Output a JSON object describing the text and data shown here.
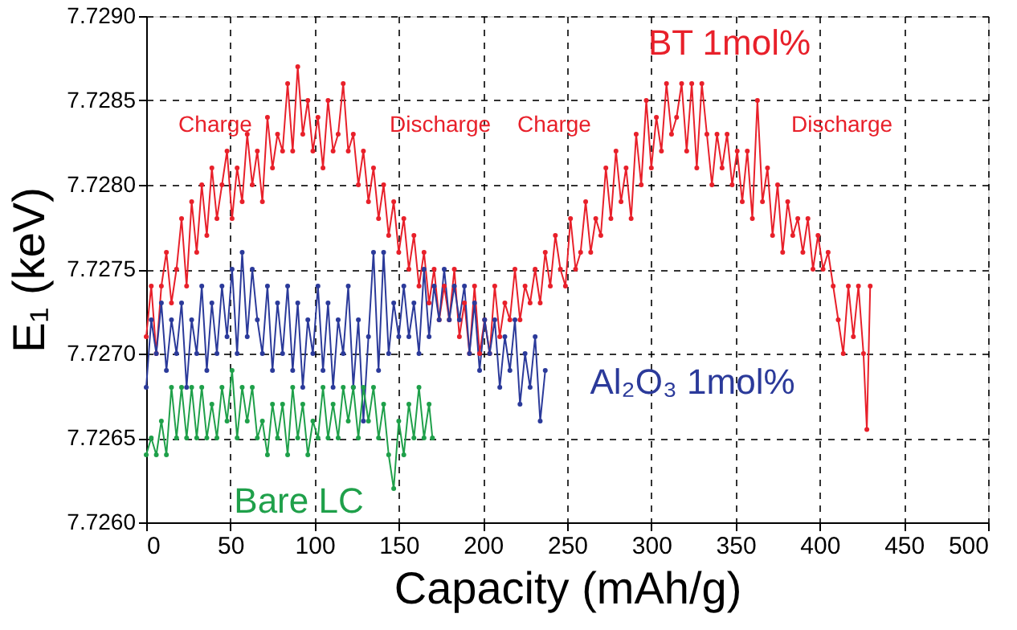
{
  "chart_data": {
    "type": "line",
    "xlabel": "Capacity (mAh/g)",
    "ylabel": "E₁ (keV)",
    "xlim": [
      0,
      500
    ],
    "xticks": [
      0,
      50,
      100,
      150,
      200,
      250,
      300,
      350,
      400,
      450,
      500
    ],
    "ylim": [
      7.726,
      7.729
    ],
    "yticks": [
      {
        "value": 7.726,
        "label": "7.7260"
      },
      {
        "value": 7.7265,
        "label": "7.7265"
      },
      {
        "value": 7.727,
        "label": "7.7270"
      },
      {
        "value": 7.7275,
        "label": "7.7275"
      },
      {
        "value": 7.728,
        "label": "7.7280"
      },
      {
        "value": 7.7285,
        "label": "7.7285"
      },
      {
        "value": 7.729,
        "label": "7.7290"
      }
    ],
    "grid": true,
    "legend": false,
    "marker": "circle",
    "line_style": "solid",
    "annotations": [
      "Charge",
      "Discharge",
      "Charge",
      "Discharge"
    ],
    "series": [
      {
        "name": "BT 1mol%",
        "color": "#e8202a",
        "x": [
          0,
          3,
          6,
          9,
          12,
          15,
          18,
          21,
          24,
          27,
          30,
          33,
          36,
          39,
          42,
          45,
          48,
          51,
          54,
          57,
          60,
          63,
          66,
          69,
          72,
          75,
          78,
          81,
          84,
          87,
          90,
          93,
          96,
          99,
          102,
          105,
          108,
          111,
          114,
          117,
          120,
          123,
          126,
          129,
          132,
          135,
          138,
          141,
          144,
          147,
          150,
          153,
          156,
          159,
          162,
          165,
          168,
          171,
          174,
          177,
          180,
          183,
          186,
          189,
          192,
          195,
          198,
          201,
          204,
          207,
          210,
          213,
          216,
          219,
          222,
          225,
          228,
          231,
          234,
          237,
          240,
          243,
          246,
          249,
          252,
          255,
          258,
          261,
          264,
          267,
          270,
          273,
          276,
          279,
          282,
          285,
          288,
          291,
          294,
          297,
          300,
          303,
          306,
          309,
          312,
          315,
          318,
          321,
          324,
          327,
          330,
          333,
          336,
          339,
          342,
          345,
          348,
          351,
          354,
          357,
          360,
          363,
          366,
          369,
          372,
          375,
          378,
          381,
          384,
          387,
          390,
          393,
          396,
          399,
          402,
          405,
          408,
          411,
          414,
          417,
          420,
          423,
          426,
          428,
          430
        ],
        "values": [
          7.7271,
          7.7274,
          7.727,
          7.7274,
          7.7276,
          7.7273,
          7.7275,
          7.7278,
          7.7274,
          7.7279,
          7.7276,
          7.728,
          7.7277,
          7.7281,
          7.7278,
          7.728,
          7.7282,
          7.7278,
          7.7281,
          7.7279,
          7.7283,
          7.728,
          7.7282,
          7.7279,
          7.7284,
          7.7281,
          7.7283,
          7.7282,
          7.7286,
          7.7282,
          7.7287,
          7.7283,
          7.7285,
          7.7282,
          7.7284,
          7.7281,
          7.7285,
          7.7282,
          7.7283,
          7.7286,
          7.7282,
          7.7283,
          7.728,
          7.7282,
          7.7279,
          7.7281,
          7.7278,
          7.728,
          7.7277,
          7.7279,
          7.7276,
          7.7278,
          7.7275,
          7.7277,
          7.7274,
          7.7276,
          7.7273,
          7.7275,
          7.7272,
          7.7274,
          7.7272,
          7.7275,
          7.7271,
          7.7273,
          7.727,
          7.7274,
          7.727,
          7.7272,
          7.727,
          7.7274,
          7.7271,
          7.7273,
          7.7272,
          7.7275,
          7.7272,
          7.7274,
          7.7273,
          7.7275,
          7.7273,
          7.7276,
          7.7274,
          7.7277,
          7.7275,
          7.7274,
          7.7278,
          7.7275,
          7.7276,
          7.7279,
          7.7276,
          7.7278,
          7.7277,
          7.7281,
          7.7278,
          7.7282,
          7.7279,
          7.7281,
          7.7278,
          7.7283,
          7.728,
          7.7285,
          7.7281,
          7.7284,
          7.7282,
          7.7286,
          7.7283,
          7.7284,
          7.7286,
          7.7282,
          7.7286,
          7.7281,
          7.7286,
          7.7283,
          7.728,
          7.7283,
          7.7281,
          7.7283,
          7.728,
          7.7282,
          7.7279,
          7.7282,
          7.7278,
          7.7285,
          7.7279,
          7.7281,
          7.7277,
          7.728,
          7.7276,
          7.7279,
          7.7277,
          7.7278,
          7.7276,
          7.7278,
          7.7275,
          7.7277,
          7.7275,
          7.7276,
          7.7274,
          7.7272,
          7.727,
          7.7274,
          7.7271,
          7.7274,
          7.727,
          7.72655,
          7.7274
        ]
      },
      {
        "name": "Al₂O₃ 1mol%",
        "color": "#2b3a9a",
        "x": [
          0,
          3,
          6,
          9,
          12,
          15,
          18,
          21,
          24,
          27,
          30,
          33,
          36,
          39,
          42,
          45,
          48,
          51,
          54,
          57,
          60,
          63,
          66,
          69,
          72,
          75,
          78,
          81,
          84,
          87,
          90,
          93,
          96,
          99,
          102,
          105,
          108,
          111,
          114,
          117,
          120,
          123,
          126,
          129,
          132,
          135,
          138,
          141,
          144,
          147,
          150,
          153,
          156,
          159,
          162,
          165,
          168,
          171,
          174,
          177,
          180,
          183,
          186,
          189,
          192,
          195,
          198,
          201,
          204,
          207,
          210,
          213,
          216,
          219,
          222,
          225,
          228,
          231,
          234,
          237
        ],
        "values": [
          7.7268,
          7.7272,
          7.727,
          7.7273,
          7.7269,
          7.7272,
          7.727,
          7.7273,
          7.7268,
          7.7272,
          7.727,
          7.7274,
          7.7269,
          7.7273,
          7.727,
          7.7274,
          7.7271,
          7.7275,
          7.727,
          7.7276,
          7.7271,
          7.7275,
          7.7272,
          7.727,
          7.7274,
          7.7269,
          7.7273,
          7.727,
          7.7274,
          7.7269,
          7.7273,
          7.7268,
          7.7272,
          7.727,
          7.7274,
          7.7269,
          7.7273,
          7.7268,
          7.7272,
          7.727,
          7.7274,
          7.7268,
          7.7272,
          7.7266,
          7.7271,
          7.7276,
          7.7269,
          7.7276,
          7.727,
          7.7273,
          7.7271,
          7.7274,
          7.7271,
          7.7273,
          7.727,
          7.7275,
          7.7271,
          7.7274,
          7.7272,
          7.7275,
          7.7272,
          7.7274,
          7.7272,
          7.7274,
          7.727,
          7.7273,
          7.7269,
          7.7272,
          7.727,
          7.7272,
          7.7268,
          7.7271,
          7.7269,
          7.7272,
          7.7267,
          7.727,
          7.7268,
          7.7271,
          7.7266,
          7.7269
        ]
      },
      {
        "name": "Bare LC",
        "color": "#1fa04a",
        "x": [
          0,
          3,
          6,
          9,
          12,
          15,
          18,
          21,
          24,
          27,
          30,
          33,
          36,
          39,
          42,
          45,
          48,
          51,
          54,
          57,
          60,
          63,
          66,
          69,
          72,
          75,
          78,
          81,
          84,
          87,
          90,
          93,
          96,
          99,
          102,
          105,
          108,
          111,
          114,
          117,
          120,
          123,
          126,
          129,
          132,
          135,
          138,
          141,
          144,
          147,
          150,
          153,
          156,
          159,
          162,
          165,
          168,
          170
        ],
        "values": [
          7.7264,
          7.7265,
          7.7264,
          7.7266,
          7.7264,
          7.7268,
          7.7265,
          7.7268,
          7.7265,
          7.7268,
          7.7265,
          7.7268,
          7.7265,
          7.7267,
          7.7265,
          7.7268,
          7.7266,
          7.7269,
          7.7265,
          7.7268,
          7.7266,
          7.7268,
          7.7265,
          7.7266,
          7.7264,
          7.7267,
          7.7265,
          7.7267,
          7.7264,
          7.7268,
          7.7265,
          7.7267,
          7.7264,
          7.7266,
          7.7265,
          7.7268,
          7.7265,
          7.7267,
          7.7265,
          7.7268,
          7.7266,
          7.7268,
          7.7265,
          7.7268,
          7.7266,
          7.7268,
          7.7265,
          7.7267,
          7.7264,
          7.7262,
          7.7266,
          7.7264,
          7.7267,
          7.7265,
          7.7268,
          7.7265,
          7.7267,
          7.7265
        ]
      }
    ]
  }
}
